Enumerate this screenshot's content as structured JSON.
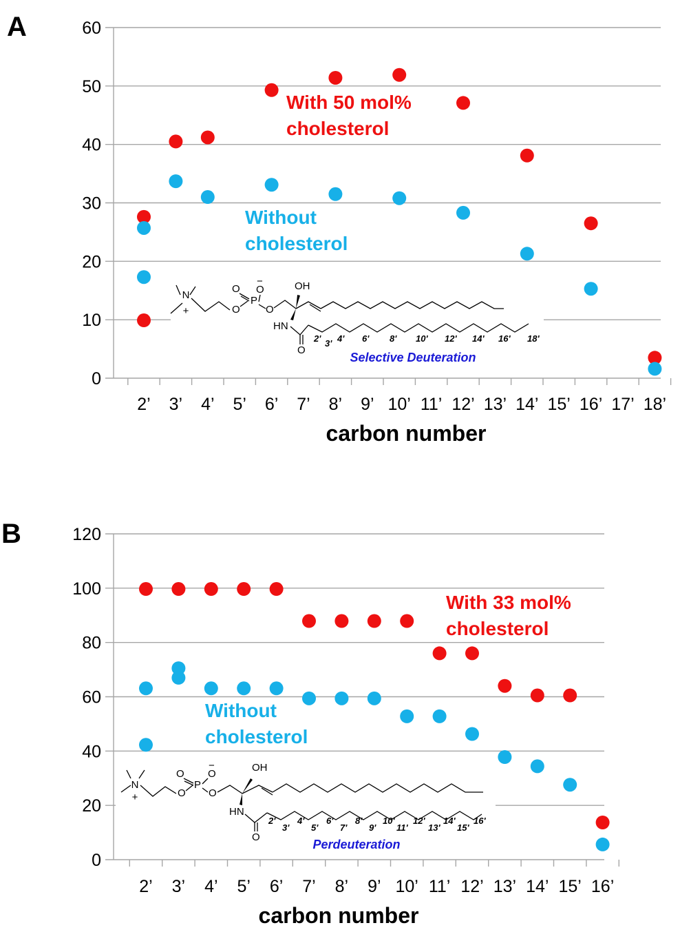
{
  "colors": {
    "with_cholesterol": "#ee1111",
    "without_cholesterol": "#17b0e8",
    "deuteration_label": "#1a1ad6",
    "grid": "#a6a6a6"
  },
  "chart_data": [
    {
      "type": "scatter",
      "panel_label": "A",
      "xlabel": "carbon number",
      "categories": [
        "2’",
        "3’",
        "4’",
        "5’",
        "6’",
        "7’",
        "8’",
        "9’",
        "10’",
        "11’",
        "12’",
        "13’",
        "14’",
        "15’",
        "16’",
        "17’",
        "18’"
      ],
      "ylim": [
        0,
        60
      ],
      "yticks": [
        "0",
        "10",
        "20",
        "30",
        "40",
        "50",
        "60"
      ],
      "grid": true,
      "series": [
        {
          "name": "With 50 mol% cholesterol",
          "label_lines": [
            "With 50 mol%",
            "cholesterol"
          ],
          "color": "#ee1111",
          "points": [
            {
              "x": "2’",
              "y": 27.6
            },
            {
              "x": "2’",
              "y": 9.9
            },
            {
              "x": "3’",
              "y": 40.5
            },
            {
              "x": "4’",
              "y": 41.2
            },
            {
              "x": "6’",
              "y": 49.3
            },
            {
              "x": "8’",
              "y": 51.4
            },
            {
              "x": "10’",
              "y": 51.9
            },
            {
              "x": "12’",
              "y": 47.1
            },
            {
              "x": "14’",
              "y": 38.1
            },
            {
              "x": "16’",
              "y": 26.5
            },
            {
              "x": "18’",
              "y": 3.5
            }
          ]
        },
        {
          "name": "Without cholesterol",
          "label_lines": [
            "Without",
            "cholesterol"
          ],
          "color": "#17b0e8",
          "points": [
            {
              "x": "2’",
              "y": 25.7
            },
            {
              "x": "2’",
              "y": 17.3
            },
            {
              "x": "3’",
              "y": 33.7
            },
            {
              "x": "4’",
              "y": 31.0
            },
            {
              "x": "6’",
              "y": 33.1
            },
            {
              "x": "8’",
              "y": 31.5
            },
            {
              "x": "10’",
              "y": 30.8
            },
            {
              "x": "12’",
              "y": 28.3
            },
            {
              "x": "14’",
              "y": 21.3
            },
            {
              "x": "16’",
              "y": 15.3
            },
            {
              "x": "18’",
              "y": 1.6
            }
          ]
        }
      ],
      "structure": {
        "oh": "OH",
        "nh": "HN",
        "o": "O",
        "p": "P",
        "n": "N",
        "plus": "+",
        "minus": "−",
        "carbon_labels": [
          "2'",
          "3'",
          "4'",
          "6'",
          "8'",
          "10'",
          "12'",
          "14'",
          "16'",
          "18'"
        ],
        "caption": "Selective Deuteration"
      }
    },
    {
      "type": "scatter",
      "panel_label": "B",
      "xlabel": "carbon number",
      "categories": [
        "2’",
        "3’",
        "4’",
        "5’",
        "6’",
        "7’",
        "8’",
        "9’",
        "10’",
        "11’",
        "12’",
        "13’",
        "14’",
        "15’",
        "16’"
      ],
      "ylim": [
        0,
        120
      ],
      "yticks": [
        "0",
        "20",
        "40",
        "60",
        "80",
        "100",
        "120"
      ],
      "grid": true,
      "series": [
        {
          "name": "With 33 mol% cholesterol",
          "label_lines": [
            "With 33 mol%",
            "cholesterol"
          ],
          "color": "#ee1111",
          "points": [
            {
              "x": "2’",
              "y": 99.7
            },
            {
              "x": "3’",
              "y": 99.7
            },
            {
              "x": "4’",
              "y": 99.7
            },
            {
              "x": "5’",
              "y": 99.7
            },
            {
              "x": "6’",
              "y": 99.7
            },
            {
              "x": "7’",
              "y": 87.9
            },
            {
              "x": "8’",
              "y": 87.9
            },
            {
              "x": "9’",
              "y": 87.9
            },
            {
              "x": "10’",
              "y": 87.9
            },
            {
              "x": "11’",
              "y": 76.0
            },
            {
              "x": "12’",
              "y": 76.0
            },
            {
              "x": "13’",
              "y": 64.0
            },
            {
              "x": "14’",
              "y": 60.5
            },
            {
              "x": "15’",
              "y": 60.5
            },
            {
              "x": "16’",
              "y": 13.7
            }
          ]
        },
        {
          "name": "Without cholesterol",
          "label_lines": [
            "Without",
            "cholesterol"
          ],
          "color": "#17b0e8",
          "points": [
            {
              "x": "2’",
              "y": 63.1
            },
            {
              "x": "2’",
              "y": 42.3
            },
            {
              "x": "3’",
              "y": 70.5
            },
            {
              "x": "3’",
              "y": 67.0
            },
            {
              "x": "4’",
              "y": 63.1
            },
            {
              "x": "5’",
              "y": 63.1
            },
            {
              "x": "6’",
              "y": 63.1
            },
            {
              "x": "7’",
              "y": 59.4
            },
            {
              "x": "8’",
              "y": 59.4
            },
            {
              "x": "9’",
              "y": 59.4
            },
            {
              "x": "10’",
              "y": 52.8
            },
            {
              "x": "11’",
              "y": 52.8
            },
            {
              "x": "12’",
              "y": 46.3
            },
            {
              "x": "13’",
              "y": 37.8
            },
            {
              "x": "14’",
              "y": 34.4
            },
            {
              "x": "15’",
              "y": 27.6
            },
            {
              "x": "16’",
              "y": 5.6
            }
          ]
        }
      ],
      "structure": {
        "oh": "OH",
        "nh": "HN",
        "o": "O",
        "p": "P",
        "n": "N",
        "plus": "+",
        "minus": "−",
        "carbon_labels": [
          "2'",
          "3'",
          "4'",
          "5'",
          "6'",
          "7'",
          "8'",
          "9'",
          "10'",
          "11'",
          "12'",
          "13'",
          "14'",
          "15'",
          "16'"
        ],
        "caption": "Perdeuteration"
      }
    }
  ]
}
